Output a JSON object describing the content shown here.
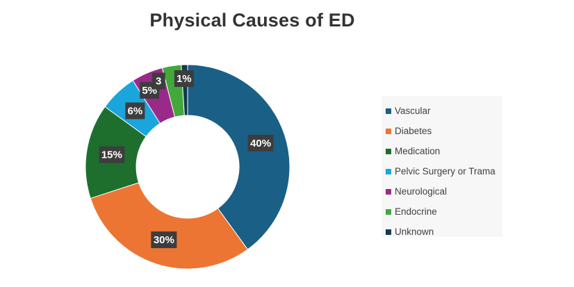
{
  "chart_data": {
    "type": "pie",
    "title": "Physical Causes of ED",
    "donut": true,
    "categories": [
      "Vascular",
      "Diabetes",
      "Medication",
      "Pelvic Surgery or Trama",
      "Neurological",
      "Endocrine",
      "Unknown"
    ],
    "values": [
      40,
      30,
      15,
      6,
      5,
      3,
      1
    ],
    "data_labels": [
      "40%",
      "30%",
      "15%",
      "6%",
      "5%",
      "3",
      "1%"
    ],
    "colors": [
      "#1a5f86",
      "#ec7534",
      "#1e6f2e",
      "#1aa5dc",
      "#9a2a8a",
      "#43a83a",
      "#123a52"
    ],
    "legend_position": "right"
  }
}
